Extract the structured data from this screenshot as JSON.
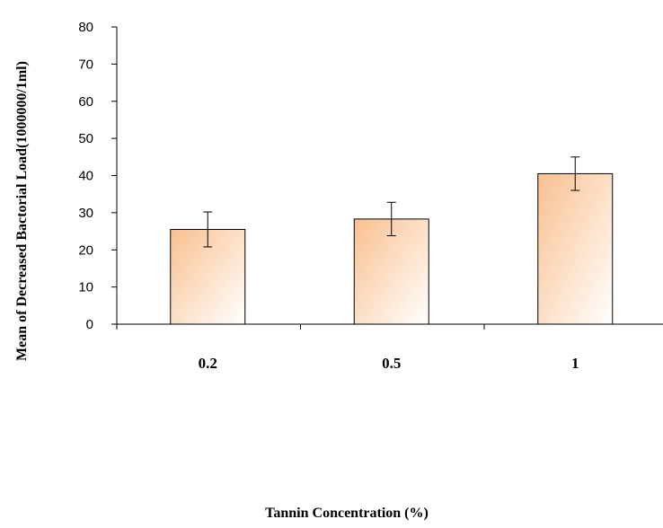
{
  "chart_data": {
    "type": "bar",
    "categories": [
      "0.2",
      "0.5",
      "1"
    ],
    "values": [
      25.5,
      28.3,
      40.5
    ],
    "error": [
      4.7,
      4.5,
      4.5
    ],
    "title": "",
    "xlabel": "Tannin Concentration (%)",
    "ylabel": "Mean of Decreased Bactorial Load(1000000/1ml)",
    "ylim": [
      0,
      80
    ],
    "yticks": [
      0,
      10,
      20,
      30,
      40,
      50,
      60,
      70,
      80
    ],
    "grid": false,
    "legend": "none",
    "colors": {
      "bar_start": "#f9c08f",
      "bar_end": "#ffffff",
      "axis": "#000000"
    }
  }
}
